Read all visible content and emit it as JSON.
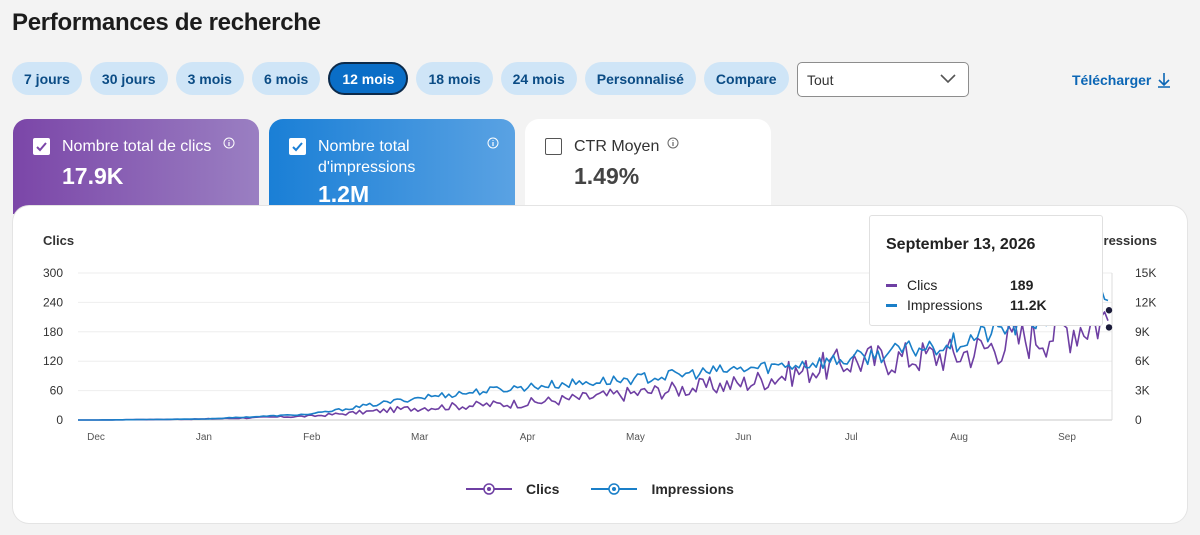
{
  "page": {
    "title": "Performances de recherche"
  },
  "ranges": [
    {
      "label": "7 jours",
      "active": false
    },
    {
      "label": "30 jours",
      "active": false
    },
    {
      "label": "3 mois",
      "active": false
    },
    {
      "label": "6 mois",
      "active": false
    },
    {
      "label": "12 mois",
      "active": true
    },
    {
      "label": "18 mois",
      "active": false
    },
    {
      "label": "24 mois",
      "active": false
    },
    {
      "label": "Personnalisé",
      "active": false
    },
    {
      "label": "Compare",
      "active": false
    }
  ],
  "filter": {
    "value": "Tout"
  },
  "download": {
    "label": "Télécharger"
  },
  "metrics": {
    "clicks": {
      "label": "Nombre total de clics",
      "value": "17.9K",
      "checked": true
    },
    "impressions": {
      "label_line1": "Nombre total",
      "label_line2": "d'impressions",
      "value": "1.2M",
      "checked": true
    },
    "ctr": {
      "label": "CTR Moyen",
      "value": "1.49%",
      "checked": false
    }
  },
  "chart": {
    "left_axis_title": "Clics",
    "right_axis_title": "ressions"
  },
  "tooltip": {
    "date": "September 13, 2026",
    "rows": [
      {
        "name": "Clics",
        "value": "189"
      },
      {
        "name": "Impressions",
        "value": "11.2K"
      }
    ]
  },
  "legend": [
    {
      "label": "Clics"
    },
    {
      "label": "Impressions"
    }
  ],
  "colors": {
    "clicks": "#6e3fa3",
    "impressions": "#1a7fc8"
  },
  "chart_data": {
    "type": "line",
    "x_tick_labels": [
      "Dec",
      "Jan",
      "Feb",
      "Mar",
      "Apr",
      "May",
      "Jun",
      "Jul",
      "Aug",
      "Sep"
    ],
    "left_axis": {
      "title": "Clics",
      "ticks": [
        0,
        60,
        120,
        180,
        240,
        300
      ],
      "range": [
        0,
        300
      ]
    },
    "right_axis": {
      "title": "ressions",
      "tick_labels": [
        "0",
        "3K",
        "6K",
        "9K",
        "12K",
        "15K"
      ],
      "range": [
        0,
        15000
      ]
    },
    "grid": true,
    "legend_position": "bottom",
    "series": [
      {
        "name": "Clics",
        "axis": "left",
        "color": "#6e3fa3",
        "x": [
          "Dec",
          "Jan",
          "Feb",
          "Mar",
          "Apr",
          "May",
          "Jun",
          "Jul",
          "Aug",
          "Sep"
        ],
        "y": [
          0,
          2,
          8,
          25,
          35,
          55,
          75,
          120,
          135,
          189
        ]
      },
      {
        "name": "Impressions",
        "axis": "right",
        "color": "#1a7fc8",
        "x": [
          "Dec",
          "Jan",
          "Feb",
          "Mar",
          "Apr",
          "May",
          "Jun",
          "Jul",
          "Aug",
          "Sep"
        ],
        "y": [
          0,
          100,
          600,
          2300,
          3400,
          4200,
          5200,
          6200,
          8000,
          11200
        ]
      }
    ]
  }
}
